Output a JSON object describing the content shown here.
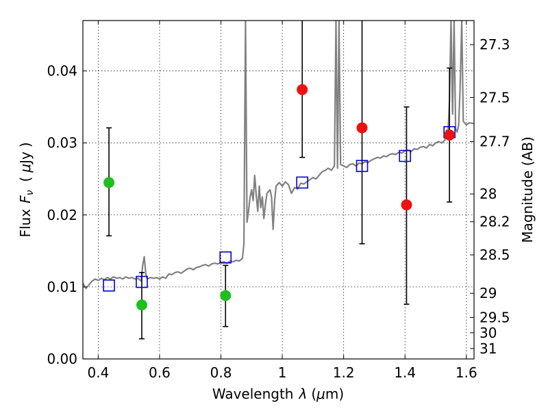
{
  "chart_data": {
    "type": "scatter",
    "x_label_parts": [
      "Wavelength",
      "λ",
      "(",
      "μ",
      "m)"
    ],
    "y_label_parts": [
      "Flux",
      "F",
      "ν",
      "(",
      "μ",
      "Jy",
      ")"
    ],
    "y2label": "Magnitude (AB)",
    "xlim": [
      0.35,
      1.625
    ],
    "ylim": [
      0.0,
      0.047
    ],
    "grid": true,
    "x_ticks": [
      {
        "value": 0.4,
        "label": "0.4"
      },
      {
        "value": 0.6,
        "label": "0.6"
      },
      {
        "value": 0.8,
        "label": "0.8"
      },
      {
        "value": 1.0,
        "label": "1"
      },
      {
        "value": 1.2,
        "label": "1.2"
      },
      {
        "value": 1.4,
        "label": "1.4"
      },
      {
        "value": 1.6,
        "label": "1.6"
      }
    ],
    "y_ticks": [
      {
        "value": 0.0,
        "label": "0.00"
      },
      {
        "value": 0.01,
        "label": "0.01"
      },
      {
        "value": 0.02,
        "label": "0.02"
      },
      {
        "value": 0.03,
        "label": "0.03"
      },
      {
        "value": 0.04,
        "label": "0.04"
      }
    ],
    "mag_ticks": [
      {
        "value": 27.3,
        "label": "27.3"
      },
      {
        "value": 27.5,
        "label": "27.5"
      },
      {
        "value": 27.7,
        "label": "27.7"
      },
      {
        "value": 28,
        "label": "28"
      },
      {
        "value": 28.2,
        "label": "28.2"
      },
      {
        "value": 28.5,
        "label": "28.5"
      },
      {
        "value": 29,
        "label": "29"
      },
      {
        "value": 29.5,
        "label": "29.5"
      },
      {
        "value": 30,
        "label": "30"
      },
      {
        "value": 31,
        "label": "31"
      }
    ],
    "series": [
      {
        "kind": "spectrum",
        "color": "#808080",
        "points": [
          [
            0.35,
            0.0105
          ],
          [
            0.36,
            0.0098
          ],
          [
            0.37,
            0.0103
          ],
          [
            0.38,
            0.0108
          ],
          [
            0.39,
            0.0111
          ],
          [
            0.4,
            0.0109
          ],
          [
            0.41,
            0.0112
          ],
          [
            0.42,
            0.011
          ],
          [
            0.43,
            0.0113
          ],
          [
            0.44,
            0.0111
          ],
          [
            0.45,
            0.0114
          ],
          [
            0.46,
            0.0112
          ],
          [
            0.47,
            0.0113
          ],
          [
            0.48,
            0.0111
          ],
          [
            0.49,
            0.0114
          ],
          [
            0.5,
            0.0112
          ],
          [
            0.51,
            0.0113
          ],
          [
            0.52,
            0.0111
          ],
          [
            0.53,
            0.0112
          ],
          [
            0.54,
            0.0108
          ],
          [
            0.545,
            0.013
          ],
          [
            0.55,
            0.0142
          ],
          [
            0.555,
            0.0118
          ],
          [
            0.56,
            0.0111
          ],
          [
            0.57,
            0.0113
          ],
          [
            0.58,
            0.0112
          ],
          [
            0.59,
            0.0113
          ],
          [
            0.6,
            0.0111
          ],
          [
            0.61,
            0.0114
          ],
          [
            0.62,
            0.0112
          ],
          [
            0.63,
            0.0118
          ],
          [
            0.64,
            0.0117
          ],
          [
            0.65,
            0.012
          ],
          [
            0.66,
            0.0121
          ],
          [
            0.67,
            0.0119
          ],
          [
            0.68,
            0.0122
          ],
          [
            0.69,
            0.0125
          ],
          [
            0.7,
            0.0126
          ],
          [
            0.71,
            0.0124
          ],
          [
            0.72,
            0.0127
          ],
          [
            0.73,
            0.0128
          ],
          [
            0.74,
            0.013
          ],
          [
            0.75,
            0.0131
          ],
          [
            0.76,
            0.0129
          ],
          [
            0.77,
            0.0132
          ],
          [
            0.78,
            0.0133
          ],
          [
            0.79,
            0.0132
          ],
          [
            0.8,
            0.0134
          ],
          [
            0.81,
            0.0135
          ],
          [
            0.82,
            0.0133
          ],
          [
            0.83,
            0.0136
          ],
          [
            0.84,
            0.0135
          ],
          [
            0.85,
            0.0137
          ],
          [
            0.86,
            0.0136
          ],
          [
            0.87,
            0.014
          ],
          [
            0.875,
            0.016
          ],
          [
            0.88,
            0.047
          ],
          [
            0.885,
            0.019
          ],
          [
            0.89,
            0.0205
          ],
          [
            0.895,
            0.0225
          ],
          [
            0.9,
            0.0235
          ],
          [
            0.905,
            0.022
          ],
          [
            0.91,
            0.0255
          ],
          [
            0.915,
            0.0228
          ],
          [
            0.92,
            0.0205
          ],
          [
            0.925,
            0.024
          ],
          [
            0.93,
            0.021
          ],
          [
            0.935,
            0.0225
          ],
          [
            0.94,
            0.0195
          ],
          [
            0.945,
            0.0215
          ],
          [
            0.95,
            0.023
          ],
          [
            0.96,
            0.0235
          ],
          [
            0.965,
            0.0225
          ],
          [
            0.97,
            0.018
          ],
          [
            0.975,
            0.022
          ],
          [
            0.98,
            0.024
          ],
          [
            0.99,
            0.0245
          ],
          [
            1.0,
            0.024
          ],
          [
            1.01,
            0.0246
          ],
          [
            1.02,
            0.0242
          ],
          [
            1.03,
            0.023
          ],
          [
            1.04,
            0.0238
          ],
          [
            1.05,
            0.0236
          ],
          [
            1.06,
            0.0244
          ],
          [
            1.07,
            0.0243
          ],
          [
            1.08,
            0.0246
          ],
          [
            1.09,
            0.0249
          ],
          [
            1.1,
            0.0252
          ],
          [
            1.11,
            0.025
          ],
          [
            1.12,
            0.0255
          ],
          [
            1.13,
            0.026
          ],
          [
            1.14,
            0.0262
          ],
          [
            1.15,
            0.0265
          ],
          [
            1.16,
            0.0262
          ],
          [
            1.17,
            0.0268
          ],
          [
            1.175,
            0.047
          ],
          [
            1.18,
            0.0265
          ],
          [
            1.185,
            0.047
          ],
          [
            1.19,
            0.027
          ],
          [
            1.2,
            0.0268
          ],
          [
            1.21,
            0.0266
          ],
          [
            1.22,
            0.027
          ],
          [
            1.23,
            0.0271
          ],
          [
            1.24,
            0.0268
          ],
          [
            1.25,
            0.0272
          ],
          [
            1.26,
            0.0271
          ],
          [
            1.27,
            0.0274
          ],
          [
            1.28,
            0.0273
          ],
          [
            1.29,
            0.0276
          ],
          [
            1.3,
            0.0278
          ],
          [
            1.31,
            0.028
          ],
          [
            1.32,
            0.0279
          ],
          [
            1.33,
            0.0282
          ],
          [
            1.34,
            0.0281
          ],
          [
            1.35,
            0.0284
          ],
          [
            1.36,
            0.0285
          ],
          [
            1.37,
            0.0284
          ],
          [
            1.38,
            0.0287
          ],
          [
            1.39,
            0.0286
          ],
          [
            1.4,
            0.0289
          ],
          [
            1.41,
            0.029
          ],
          [
            1.42,
            0.0288
          ],
          [
            1.43,
            0.0292
          ],
          [
            1.44,
            0.0291
          ],
          [
            1.45,
            0.0294
          ],
          [
            1.46,
            0.0295
          ],
          [
            1.47,
            0.0293
          ],
          [
            1.48,
            0.0298
          ],
          [
            1.49,
            0.0296
          ],
          [
            1.5,
            0.03
          ],
          [
            1.51,
            0.0302
          ],
          [
            1.52,
            0.03
          ],
          [
            1.53,
            0.0304
          ],
          [
            1.535,
            0.0318
          ],
          [
            1.54,
            0.031
          ],
          [
            1.545,
            0.036
          ],
          [
            1.55,
            0.047
          ],
          [
            1.555,
            0.034
          ],
          [
            1.56,
            0.047
          ],
          [
            1.565,
            0.032
          ],
          [
            1.57,
            0.0315
          ],
          [
            1.575,
            0.0325
          ],
          [
            1.58,
            0.038
          ],
          [
            1.585,
            0.047
          ],
          [
            1.59,
            0.033
          ],
          [
            1.6,
            0.0325
          ],
          [
            1.61,
            0.0328
          ],
          [
            1.625,
            0.0327
          ]
        ]
      },
      {
        "kind": "model-points",
        "color": "#0000cc",
        "points": [
          [
            0.435,
            0.0102
          ],
          [
            0.542,
            0.0107
          ],
          [
            0.815,
            0.0141
          ],
          [
            1.065,
            0.0245
          ],
          [
            1.26,
            0.0268
          ],
          [
            1.4,
            0.0282
          ],
          [
            1.545,
            0.0315
          ]
        ]
      },
      {
        "kind": "detections",
        "color": "#1fbf1f",
        "points": [
          {
            "x": 0.435,
            "y": 0.0245,
            "err_low": 0.0171,
            "err_high": 0.0321
          },
          {
            "x": 0.542,
            "y": 0.0075,
            "err_low": 0.0028,
            "err_high": 0.012
          },
          {
            "x": 0.815,
            "y": 0.0088,
            "err_low": 0.0045,
            "err_high": 0.013
          }
        ]
      },
      {
        "kind": "upper-limits",
        "color": "#ee1111",
        "points": [
          {
            "x": 1.065,
            "y": 0.0374,
            "err_low": 0.028,
            "err_high": 0.047
          },
          {
            "x": 1.26,
            "y": 0.0321,
            "err_low": 0.016,
            "err_high": 0.047
          },
          {
            "x": 1.405,
            "y": 0.0214,
            "err_low": 0.0076,
            "err_high": 0.035
          },
          {
            "x": 1.545,
            "y": 0.0311,
            "err_low": 0.0218,
            "err_high": 0.0404
          }
        ]
      }
    ]
  }
}
